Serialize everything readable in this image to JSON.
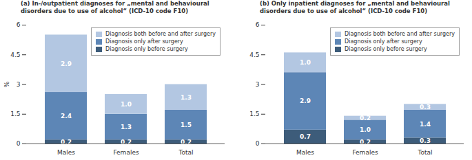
{
  "chart_data": [
    {
      "type": "bar",
      "title": "(a) In-/outpatient diagnoses for „mental and behavioural disorders due to use of alcohol“ (ICD-10 code F10)",
      "y_label": "%",
      "categories": [
        "Males",
        "Females",
        "Total"
      ],
      "series": [
        {
          "name": "Diagnosis only before surgery",
          "color": "#3d5c7a",
          "values": [
            0.2,
            0.2,
            0.2
          ],
          "value_labels": [
            "0.2",
            "0.2",
            "0.2"
          ]
        },
        {
          "name": "Diagnosis only after surgery",
          "color": "#5d86b6",
          "values": [
            2.4,
            1.3,
            1.5
          ],
          "value_labels": [
            "2.4",
            "1.3",
            "1.5"
          ]
        },
        {
          "name": "Diagnosis both before and after surgery",
          "color": "#b3c7e2",
          "values": [
            2.9,
            1.0,
            1.3
          ],
          "value_labels": [
            "2.9",
            "1.0",
            "1.3"
          ]
        }
      ],
      "ylim": [
        0,
        6
      ],
      "yticks": [
        0,
        1.5,
        3,
        4.5,
        6
      ],
      "stacked": true,
      "data_labels": true,
      "legend": "top-right"
    },
    {
      "type": "bar",
      "title": "(b) Only inpatient diagnoses for „mental and behavioural disorders due to use of alcohol“ (ICD-10 code F10)",
      "categories": [
        "Males",
        "Females",
        "Total"
      ],
      "series": [
        {
          "name": "Diagnosis only before surgery",
          "color": "#3d5c7a",
          "values": [
            0.7,
            0.2,
            0.3
          ],
          "value_labels": [
            "0.7",
            "0.2",
            "0.3"
          ]
        },
        {
          "name": "Diagnosis only after surgery",
          "color": "#5d86b6",
          "values": [
            2.9,
            1.0,
            1.4
          ],
          "value_labels": [
            "2.9",
            "1.0",
            "1.4"
          ]
        },
        {
          "name": "Diagnosis both before and after surgery",
          "color": "#b3c7e2",
          "values": [
            1.0,
            0.2,
            0.3
          ],
          "value_labels": [
            "1.0",
            "0.2",
            "0.3"
          ]
        }
      ],
      "ylim": [
        0,
        6
      ],
      "yticks": [
        0,
        1.5,
        3,
        4.5,
        6
      ],
      "stacked": true,
      "data_labels": true,
      "legend": "top-right"
    }
  ]
}
